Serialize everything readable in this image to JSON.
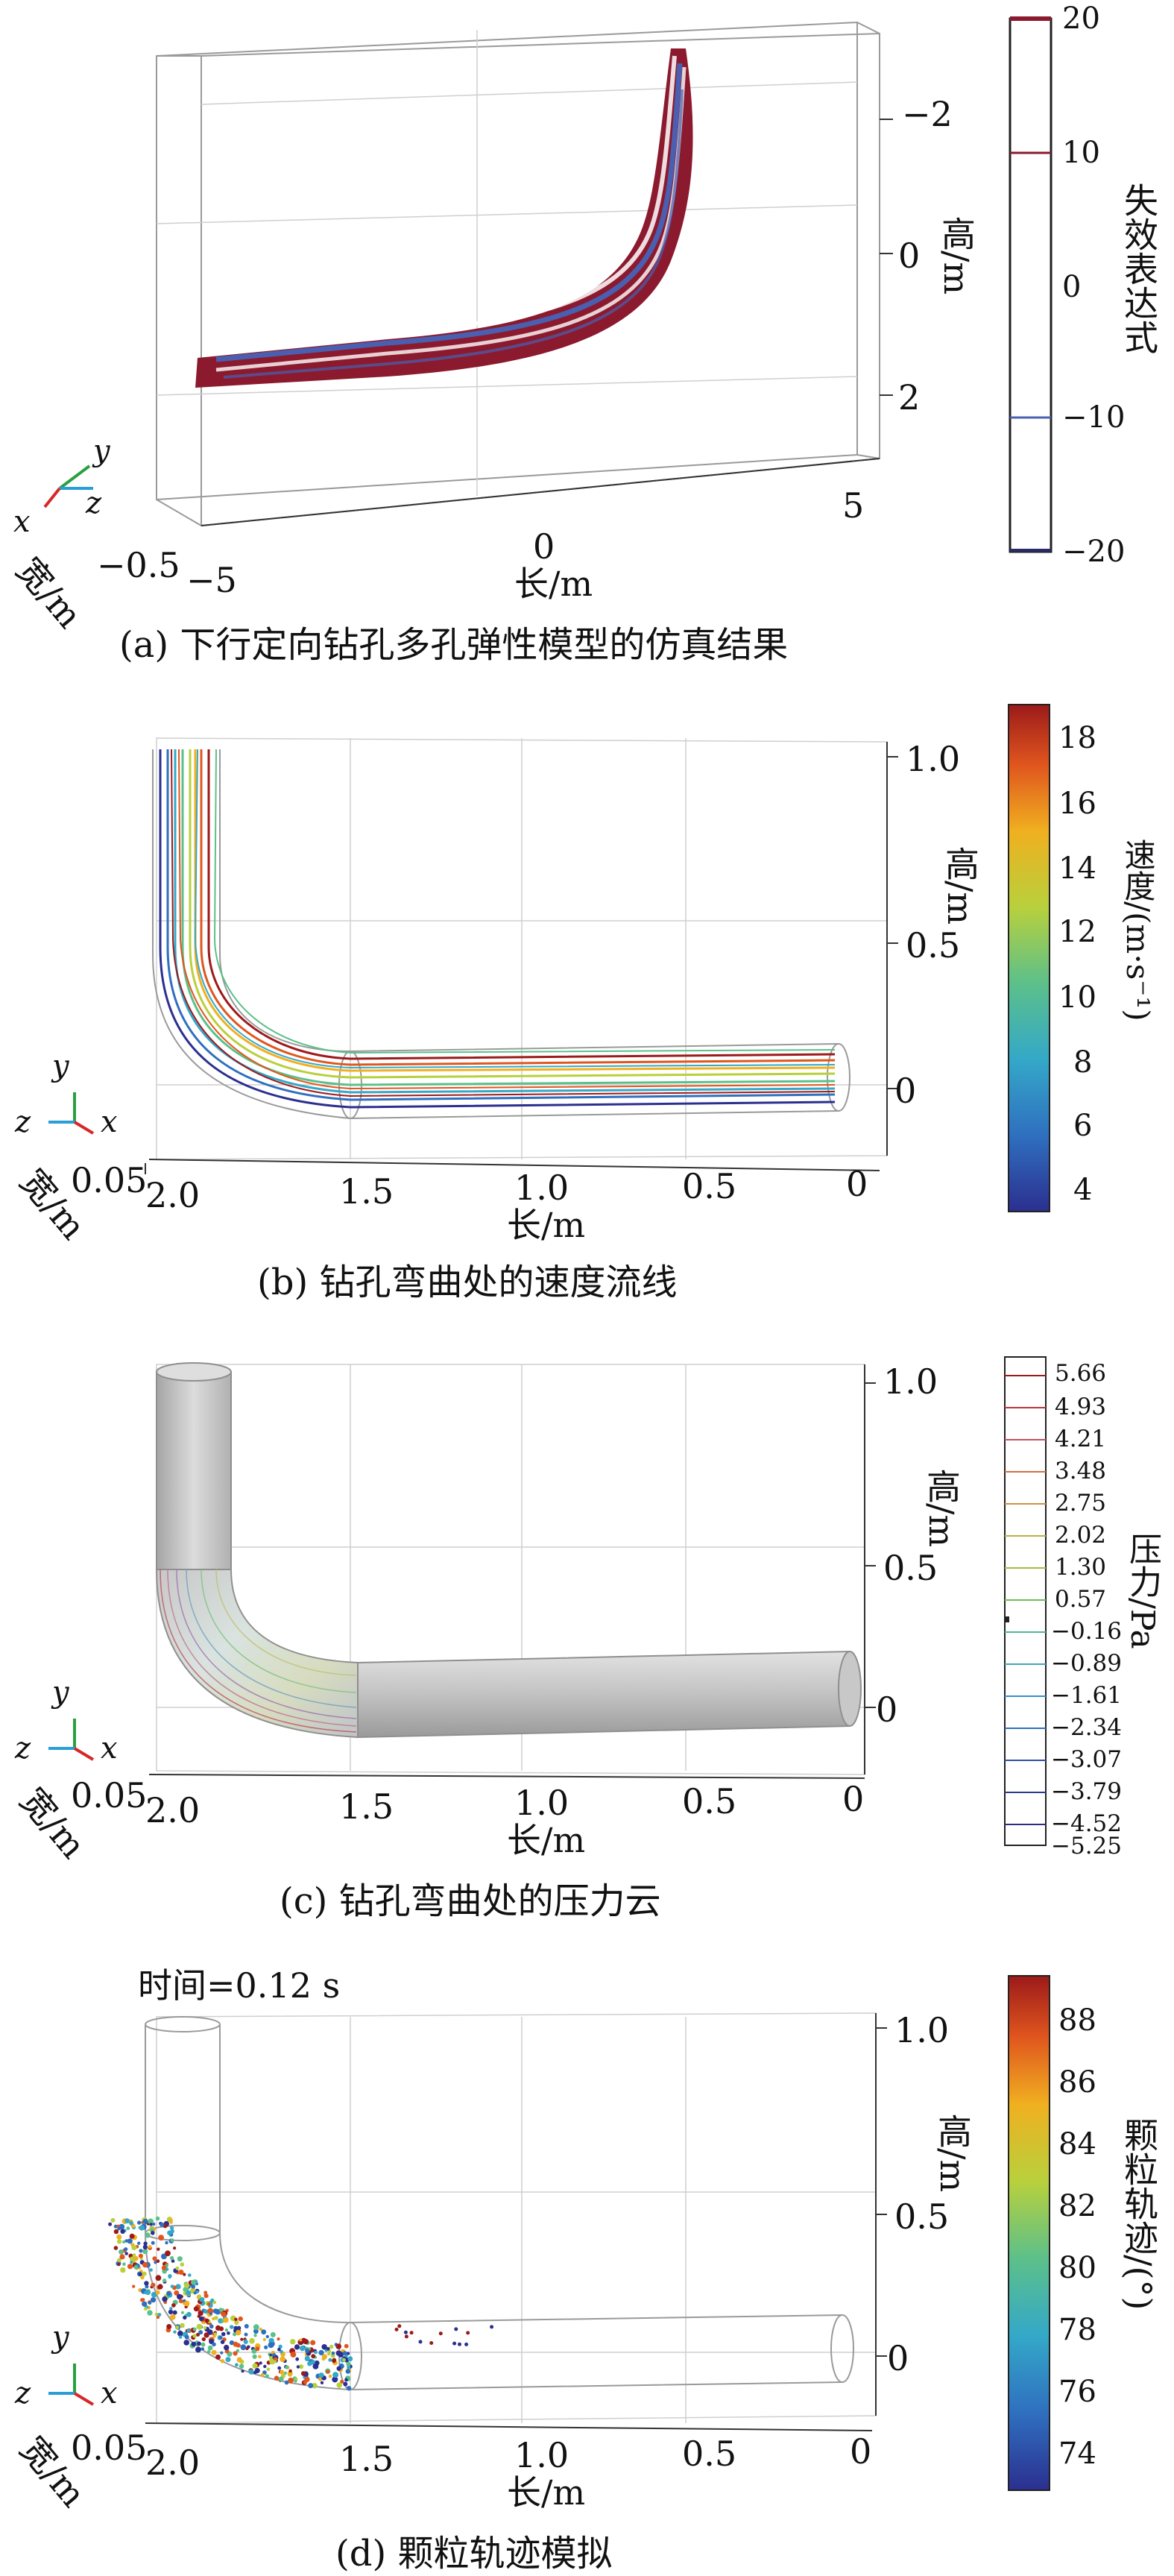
{
  "panels": [
    {
      "caption": "(a) 下行定向钻孔多孔弹性模型的仿真结果",
      "axes": {
        "x_label": "长/m",
        "y_label": "宽/m",
        "z_label": "高/m",
        "x_ticks": [
          "−5",
          "0",
          "5"
        ],
        "y_ticks": [
          "−0.5"
        ],
        "z_ticks": [
          "−2",
          "0",
          "2"
        ]
      },
      "triad": {
        "x": "x",
        "y": "y",
        "z": "z"
      },
      "colorbar": {
        "title": "失效表达式",
        "ticks": [
          "20",
          "10",
          "0",
          "−10",
          "−20"
        ]
      }
    },
    {
      "caption": "(b) 钻孔弯曲处的速度流线",
      "axes": {
        "x_label": "长/m",
        "y_label": "宽/m",
        "z_label": "高/m",
        "x_ticks": [
          "2.0",
          "1.5",
          "1.0",
          "0.5",
          "0"
        ],
        "y_ticks": [
          "0.05"
        ],
        "z_ticks": [
          "1.0",
          "0.5",
          "0"
        ]
      },
      "triad": {
        "x": "x",
        "y": "y",
        "z": "z"
      },
      "colorbar": {
        "title": "速度/(m·s⁻¹)",
        "ticks": [
          "18",
          "16",
          "14",
          "12",
          "10",
          "8",
          "6",
          "4"
        ]
      }
    },
    {
      "caption": "(c) 钻孔弯曲处的压力云",
      "axes": {
        "x_label": "长/m",
        "y_label": "宽/m",
        "z_label": "高/m",
        "x_ticks": [
          "2.0",
          "1.5",
          "1.0",
          "0.5",
          "0"
        ],
        "y_ticks": [
          "0.05"
        ],
        "z_ticks": [
          "1.0",
          "0.5",
          "0"
        ]
      },
      "triad": {
        "x": "x",
        "y": "y",
        "z": "z"
      },
      "colorbar": {
        "title": "压力/Pa",
        "ticks": [
          "5.66",
          "4.93",
          "4.21",
          "3.48",
          "2.75",
          "2.02",
          "1.30",
          "0.57",
          "−0.16",
          "−0.89",
          "−1.61",
          "−2.34",
          "−3.07",
          "−3.79",
          "−4.52",
          "−5.25"
        ]
      }
    },
    {
      "caption": "(d) 颗粒轨迹模拟",
      "time_label": "时间=0.12 s",
      "axes": {
        "x_label": "长/m",
        "y_label": "宽/m",
        "z_label": "高/m",
        "x_ticks": [
          "2.0",
          "1.5",
          "1.0",
          "0.5",
          "0"
        ],
        "y_ticks": [
          "0.05"
        ],
        "z_ticks": [
          "1.0",
          "0.5",
          "0"
        ]
      },
      "triad": {
        "x": "x",
        "y": "y",
        "z": "z"
      },
      "colorbar": {
        "title": "颗粒轨迹/(°)",
        "ticks": [
          "88",
          "86",
          "84",
          "82",
          "80",
          "78",
          "76",
          "74"
        ]
      }
    }
  ],
  "colors": {
    "failure_red": "#8b1a2e",
    "failure_blue": "#4a5fb0",
    "pipe_gray": "#b8b8b8",
    "jet_colormap": [
      "#2b2f8f",
      "#2f6fbf",
      "#34a8c8",
      "#5cc08a",
      "#b8d03c",
      "#f0b020",
      "#e0561e",
      "#9c1a1a"
    ]
  }
}
